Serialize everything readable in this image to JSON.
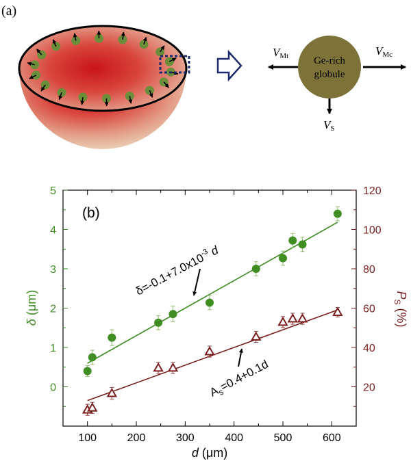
{
  "panel_a": {
    "label": "(a)",
    "globule_text_line1": "Ge-rich",
    "globule_text_line2": "globule",
    "arrow_left": {
      "symbol": "V",
      "subscript": "Mt"
    },
    "arrow_right": {
      "symbol": "V",
      "subscript": "Mc"
    },
    "arrow_down": {
      "symbol": "V",
      "subscript": "S"
    },
    "colors": {
      "globule": "#7d7339",
      "dot": "#6b8e3a",
      "hemisphere_core": "#d0161c",
      "hemisphere_edge": "#ead0b4",
      "box": "#1b2b6e"
    }
  },
  "panel_b": {
    "label": "(b)",
    "left_axis_label": {
      "symbol": "δ",
      "unit": " (μm)"
    },
    "right_axis_label": {
      "symbol": "P",
      "subscript": "S",
      "unit": " (%)"
    },
    "x_axis_label": {
      "symbol": "d",
      "unit": " (μm)"
    },
    "eq_delta": {
      "prefix": "δ=-0.1+7.0x10",
      "exponent": "-3",
      "var": " d"
    },
    "eq_as": {
      "prefix": "A",
      "subscript": "s",
      "suffix": "=0.4+0.1d"
    },
    "colors": {
      "green": "#3f8d23",
      "green_line": "#3a8a1e",
      "maroon": "#7a1f1f",
      "errbar_green": "#8fbe6e",
      "errbar_maroon": "#8a3b3b"
    }
  },
  "chart_data": {
    "type": "scatter",
    "xlabel": "d (μm)",
    "ylabel": "δ (μm)",
    "y2label": "P_S (%)",
    "xlim": [
      50,
      650
    ],
    "ylim": [
      -1,
      5
    ],
    "y2lim": [
      0,
      120
    ],
    "xticks": [
      100,
      200,
      300,
      400,
      500,
      600
    ],
    "yticks": [
      0,
      1,
      2,
      3,
      4,
      5
    ],
    "y2ticks": [
      20,
      40,
      60,
      80,
      100,
      120
    ],
    "series": [
      {
        "name": "δ (μm)",
        "axis": "left",
        "marker": "filled-circle",
        "x": [
          100,
          110,
          150,
          245,
          275,
          350,
          445,
          500,
          520,
          540,
          612
        ],
        "y": [
          0.4,
          0.75,
          1.25,
          1.63,
          1.85,
          2.14,
          3.0,
          3.27,
          3.72,
          3.62,
          4.4
        ],
        "err": [
          0.14,
          0.18,
          0.2,
          0.18,
          0.2,
          0.18,
          0.18,
          0.18,
          0.18,
          0.18,
          0.18
        ],
        "fit": {
          "intercept": -0.1,
          "slope": 0.007,
          "x_range": [
            100,
            612
          ]
        }
      },
      {
        "name": "P_S (%)",
        "axis": "right",
        "marker": "open-triangle",
        "x": [
          100,
          110,
          150,
          245,
          275,
          350,
          445,
          500,
          520,
          540,
          612
        ],
        "y": [
          8.3,
          9.3,
          16.7,
          29.6,
          29.6,
          37.9,
          45.4,
          52.9,
          54.6,
          54.6,
          57.9
        ],
        "err": [
          2.8,
          2.8,
          3.0,
          2.8,
          2.8,
          2.8,
          2.8,
          2.8,
          2.8,
          2.8,
          2.4
        ],
        "fit": {
          "intercept": 4.0,
          "slope": 0.09,
          "x_range": [
            100,
            612
          ]
        }
      }
    ]
  }
}
